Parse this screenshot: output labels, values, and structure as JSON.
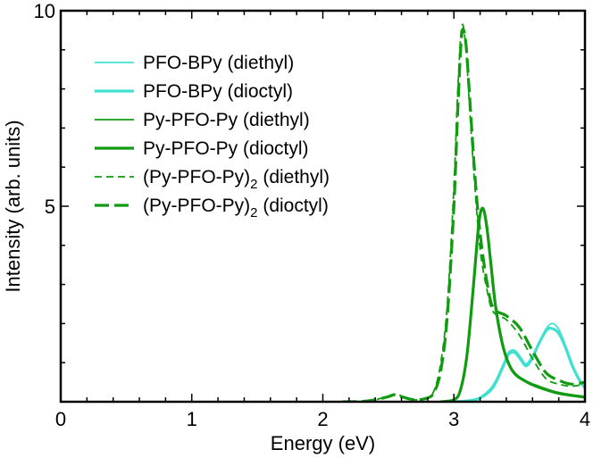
{
  "chart_data": {
    "type": "line",
    "title": "",
    "xlabel": "Energy (eV)",
    "ylabel": "Intensity (arb. units)",
    "xlim": [
      0,
      4
    ],
    "ylim": [
      0,
      10
    ],
    "x_ticks": [
      0,
      1,
      2,
      3,
      4
    ],
    "x_tick_labels": [
      "0",
      "1",
      "2",
      "3",
      "4"
    ],
    "y_ticks": [
      5,
      10
    ],
    "y_tick_labels": [
      "5",
      "10"
    ],
    "legend_position": "top-left",
    "series": [
      {
        "name": "PFO-BPy (diethyl)",
        "legend_main": "PFO-BPy (diethyl)",
        "legend_sub": "",
        "legend_suffix": "",
        "color": "#40e0d0",
        "style": "thin-solid",
        "points": [
          [
            3.0,
            0
          ],
          [
            3.1,
            0.01
          ],
          [
            3.2,
            0.08
          ],
          [
            3.3,
            0.35
          ],
          [
            3.38,
            0.9
          ],
          [
            3.42,
            1.2
          ],
          [
            3.46,
            1.25
          ],
          [
            3.5,
            1.1
          ],
          [
            3.55,
            0.9
          ],
          [
            3.6,
            1.1
          ],
          [
            3.65,
            1.5
          ],
          [
            3.7,
            1.85
          ],
          [
            3.75,
            2.0
          ],
          [
            3.8,
            1.85
          ],
          [
            3.85,
            1.45
          ],
          [
            3.9,
            1.0
          ],
          [
            3.95,
            0.6
          ],
          [
            4.0,
            0.35
          ]
        ]
      },
      {
        "name": "PFO-BPy (dioctyl)",
        "legend_main": "PFO-BPy (dioctyl)",
        "legend_sub": "",
        "legend_suffix": "",
        "color": "#40e0d0",
        "style": "thick-solid",
        "points": [
          [
            3.0,
            0
          ],
          [
            3.1,
            0.02
          ],
          [
            3.2,
            0.1
          ],
          [
            3.3,
            0.4
          ],
          [
            3.38,
            0.95
          ],
          [
            3.42,
            1.25
          ],
          [
            3.46,
            1.3
          ],
          [
            3.5,
            1.15
          ],
          [
            3.55,
            0.95
          ],
          [
            3.6,
            1.15
          ],
          [
            3.65,
            1.5
          ],
          [
            3.7,
            1.8
          ],
          [
            3.74,
            1.88
          ],
          [
            3.8,
            1.75
          ],
          [
            3.85,
            1.4
          ],
          [
            3.9,
            0.95
          ],
          [
            3.95,
            0.6
          ],
          [
            4.0,
            0.35
          ]
        ]
      },
      {
        "name": "Py-PFO-Py (diethyl)",
        "legend_main": "Py-PFO-Py (diethyl)",
        "legend_sub": "",
        "legend_suffix": "",
        "color": "#119b11",
        "style": "thin-solid",
        "points": [
          [
            2.9,
            0
          ],
          [
            3.0,
            0.05
          ],
          [
            3.05,
            0.3
          ],
          [
            3.1,
            1.2
          ],
          [
            3.15,
            3.0
          ],
          [
            3.19,
            4.5
          ],
          [
            3.22,
            4.9
          ],
          [
            3.25,
            4.4
          ],
          [
            3.28,
            3.5
          ],
          [
            3.32,
            2.3
          ],
          [
            3.38,
            1.3
          ],
          [
            3.45,
            0.75
          ],
          [
            3.55,
            0.5
          ],
          [
            3.65,
            0.35
          ],
          [
            3.8,
            0.2
          ],
          [
            4.0,
            0.1
          ]
        ]
      },
      {
        "name": "Py-PFO-Py (dioctyl)",
        "legend_main": "Py-PFO-Py (dioctyl)",
        "legend_sub": "",
        "legend_suffix": "",
        "color": "#119b11",
        "style": "thick-solid",
        "points": [
          [
            2.9,
            0
          ],
          [
            3.0,
            0.05
          ],
          [
            3.05,
            0.3
          ],
          [
            3.1,
            1.2
          ],
          [
            3.15,
            3.0
          ],
          [
            3.19,
            4.55
          ],
          [
            3.22,
            4.95
          ],
          [
            3.25,
            4.5
          ],
          [
            3.28,
            3.6
          ],
          [
            3.32,
            2.4
          ],
          [
            3.38,
            1.35
          ],
          [
            3.45,
            0.78
          ],
          [
            3.55,
            0.52
          ],
          [
            3.65,
            0.38
          ],
          [
            3.8,
            0.22
          ],
          [
            4.0,
            0.12
          ]
        ]
      },
      {
        "name": "(Py-PFO-Py)2 (diethyl)",
        "legend_main": "(Py-PFO-Py)",
        "legend_sub": "2",
        "legend_suffix": " (diethyl)",
        "color": "#119b11",
        "style": "thin-dash",
        "points": [
          [
            2.15,
            0
          ],
          [
            2.3,
            0.01
          ],
          [
            2.4,
            0.05
          ],
          [
            2.5,
            0.15
          ],
          [
            2.55,
            0.2
          ],
          [
            2.6,
            0.15
          ],
          [
            2.7,
            0.05
          ],
          [
            2.8,
            0.1
          ],
          [
            2.85,
            0.3
          ],
          [
            2.9,
            1.0
          ],
          [
            2.95,
            2.5
          ],
          [
            3.0,
            5.5
          ],
          [
            3.03,
            8.0
          ],
          [
            3.06,
            9.6
          ],
          [
            3.09,
            9.1
          ],
          [
            3.12,
            7.5
          ],
          [
            3.16,
            5.5
          ],
          [
            3.2,
            3.9
          ],
          [
            3.25,
            2.9
          ],
          [
            3.3,
            2.3
          ],
          [
            3.4,
            2.1
          ],
          [
            3.5,
            1.7
          ],
          [
            3.6,
            1.1
          ],
          [
            3.7,
            0.6
          ],
          [
            3.8,
            0.45
          ],
          [
            3.9,
            0.4
          ],
          [
            4.0,
            0.45
          ]
        ]
      },
      {
        "name": "(Py-PFO-Py)2 (dioctyl)",
        "legend_main": "(Py-PFO-Py)",
        "legend_sub": "2",
        "legend_suffix": " (dioctyl)",
        "color": "#119b11",
        "style": "thick-dash",
        "points": [
          [
            2.15,
            0
          ],
          [
            2.3,
            0.01
          ],
          [
            2.4,
            0.05
          ],
          [
            2.5,
            0.13
          ],
          [
            2.55,
            0.18
          ],
          [
            2.6,
            0.13
          ],
          [
            2.7,
            0.05
          ],
          [
            2.8,
            0.1
          ],
          [
            2.85,
            0.25
          ],
          [
            2.9,
            0.8
          ],
          [
            2.95,
            2.2
          ],
          [
            3.0,
            5.0
          ],
          [
            3.03,
            7.5
          ],
          [
            3.06,
            9.4
          ],
          [
            3.09,
            9.2
          ],
          [
            3.12,
            7.8
          ],
          [
            3.16,
            5.8
          ],
          [
            3.2,
            4.3
          ],
          [
            3.25,
            3.1
          ],
          [
            3.3,
            2.4
          ],
          [
            3.4,
            2.2
          ],
          [
            3.5,
            1.9
          ],
          [
            3.6,
            1.3
          ],
          [
            3.7,
            0.75
          ],
          [
            3.8,
            0.55
          ],
          [
            3.9,
            0.45
          ],
          [
            4.0,
            0.5
          ]
        ]
      }
    ]
  }
}
